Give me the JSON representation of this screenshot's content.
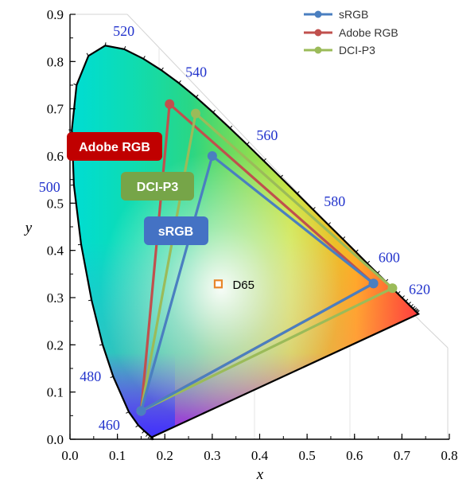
{
  "chart_data": {
    "type": "scatter",
    "xlabel": "x",
    "ylabel": "y",
    "xlim": [
      0.0,
      0.8
    ],
    "ylim": [
      0.0,
      0.9
    ],
    "x_ticks": [
      "0.0",
      "0.1",
      "0.2",
      "0.3",
      "0.4",
      "0.5",
      "0.6",
      "0.7",
      "0.8"
    ],
    "y_ticks": [
      "0.0",
      "0.1",
      "0.2",
      "0.3",
      "0.4",
      "0.5",
      "0.6",
      "0.7",
      "0.8",
      "0.9"
    ],
    "legend_position": "top-right",
    "series": [
      {
        "name": "sRGB",
        "color": "#4a7fc0",
        "x": [
          0.64,
          0.3,
          0.15
        ],
        "y": [
          0.33,
          0.6,
          0.06
        ]
      },
      {
        "name": "Adobe RGB",
        "color": "#c0504d",
        "x": [
          0.64,
          0.21,
          0.15
        ],
        "y": [
          0.33,
          0.71,
          0.06
        ]
      },
      {
        "name": "DCI-P3",
        "color": "#9bbb59",
        "x": [
          0.68,
          0.265,
          0.15
        ],
        "y": [
          0.32,
          0.69,
          0.06
        ]
      }
    ],
    "white_point": {
      "label": "D65",
      "x": 0.3127,
      "y": 0.329
    },
    "spectral_locus": {
      "wavelengths": [
        460,
        480,
        500,
        520,
        540,
        560,
        580,
        600,
        620
      ],
      "labels": [
        "460",
        "480",
        "500",
        "520",
        "540",
        "560",
        "580",
        "600",
        "620"
      ],
      "x": [
        0.144,
        0.091,
        0.008,
        0.074,
        0.23,
        0.373,
        0.512,
        0.627,
        0.691
      ],
      "y": [
        0.03,
        0.133,
        0.538,
        0.834,
        0.754,
        0.624,
        0.487,
        0.372,
        0.308
      ]
    },
    "badges": [
      {
        "label": "Adobe RGB",
        "color": "#c00000"
      },
      {
        "label": "DCI-P3",
        "color": "#76a548"
      },
      {
        "label": "sRGB",
        "color": "#4472c4"
      }
    ]
  }
}
